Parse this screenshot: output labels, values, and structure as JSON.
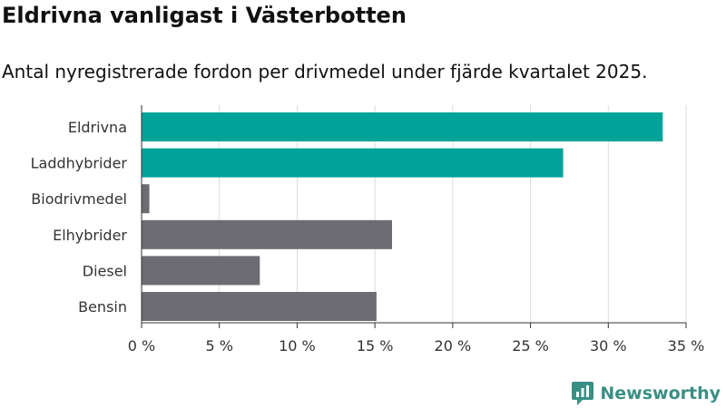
{
  "chart_data": {
    "type": "bar",
    "orientation": "horizontal",
    "title": "Eldrivna vanligast i Västerbotten",
    "subtitle": "Antal nyregistrerade fordon per drivmedel under fjärde kvartalet 2025.",
    "categories": [
      "Eldrivna",
      "Laddhybrider",
      "Biodrivmedel",
      "Elhybrider",
      "Diesel",
      "Bensin"
    ],
    "values": [
      33.5,
      27.1,
      0.5,
      16.1,
      7.6,
      15.1
    ],
    "highlighted": [
      true,
      true,
      false,
      false,
      false,
      false
    ],
    "xlim": [
      0,
      35
    ],
    "xticks": [
      0,
      5,
      10,
      15,
      20,
      25,
      30,
      35
    ],
    "xtick_labels": [
      "0 %",
      "5 %",
      "10 %",
      "15 %",
      "20 %",
      "25 %",
      "30 %",
      "35 %"
    ],
    "xlabel": "",
    "ylabel": "",
    "grid": true,
    "colors": {
      "highlight": "#00a398",
      "default": "#6d6c72",
      "grid": "#dddddd",
      "axis": "#333333"
    }
  },
  "brand": {
    "name": "Newsworthy",
    "logo_icon": "chart-bubble-icon",
    "color": "#3b8f85"
  }
}
